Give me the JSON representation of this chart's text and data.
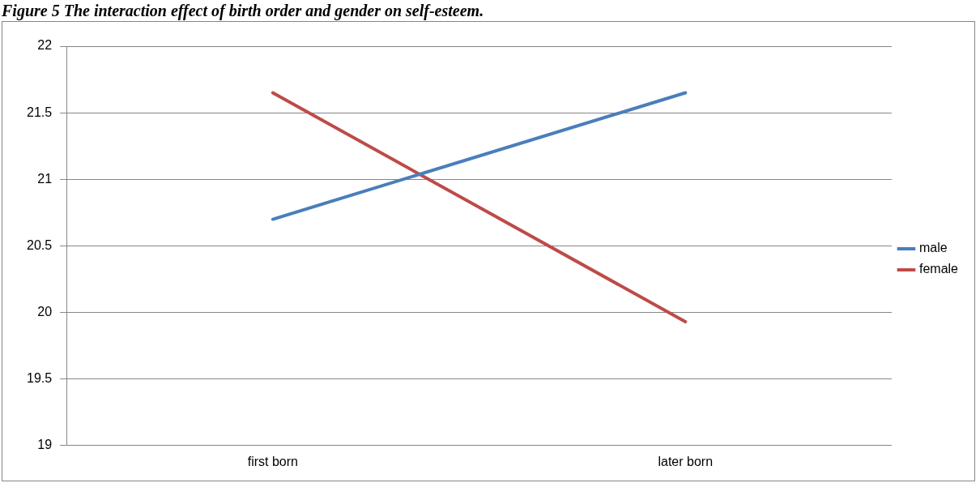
{
  "chart_data": {
    "type": "line",
    "title": "Figure 5 The interaction effect of birth order and gender on self-esteem.",
    "categories": [
      "first born",
      "later born"
    ],
    "series": [
      {
        "name": "male",
        "color": "#4a7ebb",
        "values": [
          20.7,
          21.65
        ]
      },
      {
        "name": "female",
        "color": "#be4b48",
        "values": [
          21.65,
          19.93
        ]
      }
    ],
    "ylim": [
      19,
      22
    ],
    "yticks": [
      19,
      19.5,
      20,
      20.5,
      21,
      21.5,
      22
    ],
    "grid": "y",
    "legend": "right",
    "marker": "none",
    "line_style": "solid"
  }
}
